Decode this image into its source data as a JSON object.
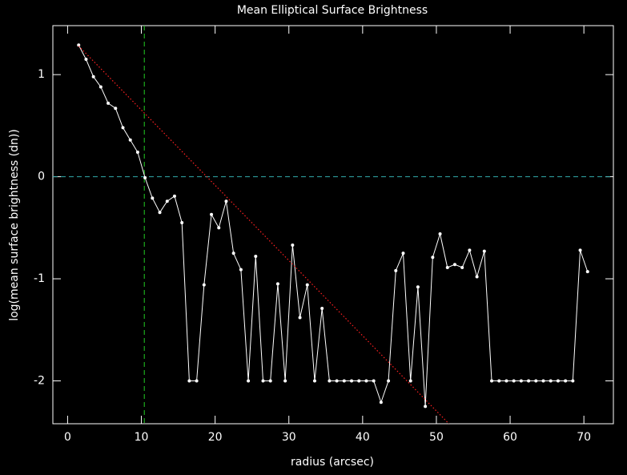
{
  "chart_data": {
    "type": "line",
    "title": "Mean Elliptical Surface Brightness",
    "x_label": "radius (arcsec)",
    "y_label": "log(mean surface brightness (dn))",
    "xlim": [
      -2,
      74
    ],
    "ylim": [
      -2.42,
      1.48
    ],
    "xticks": [
      0,
      10,
      20,
      30,
      40,
      50,
      60,
      70
    ],
    "yticks": [
      -2,
      -1,
      0,
      1
    ],
    "series": [
      {
        "color": "#ffffff",
        "x": [
          1.5,
          2.5,
          3.5,
          4.5,
          5.5,
          6.5,
          7.5,
          8.5,
          9.5,
          10.5,
          11.5,
          12.5,
          13.5,
          14.5,
          15.5,
          16.5,
          17.5,
          18.5,
          19.5,
          20.5,
          21.5,
          22.5,
          23.5,
          24.5,
          25.5,
          26.5,
          27.5,
          28.5,
          29.5,
          30.5,
          31.5,
          32.5,
          33.5,
          34.5,
          35.5,
          36.5,
          37.5,
          38.5,
          39.5,
          40.5,
          41.5,
          42.5,
          43.5,
          44.5,
          45.5,
          46.5,
          47.5,
          48.5,
          49.5,
          50.5,
          51.5,
          52.5,
          53.5,
          54.5,
          55.5,
          56.5,
          57.5,
          58.5,
          59.5,
          60.5,
          61.5,
          62.5,
          63.5,
          64.5,
          65.5,
          66.5,
          67.5,
          68.5,
          69.5,
          70.5
        ],
        "values": [
          1.29,
          1.15,
          0.98,
          0.88,
          0.72,
          0.67,
          0.48,
          0.36,
          0.24,
          -0.01,
          -0.21,
          -0.35,
          -0.24,
          -0.19,
          -0.45,
          -2,
          -2,
          -1.06,
          -0.37,
          -0.5,
          -0.24,
          -0.75,
          -0.91,
          -2,
          -0.78,
          -2,
          -2,
          -1.05,
          -2,
          -0.67,
          -1.38,
          -1.06,
          -2,
          -1.29,
          -2,
          -2,
          -2,
          -2,
          -2,
          -2,
          -2,
          -2.21,
          -2,
          -0.92,
          -0.75,
          -2,
          -1.08,
          -2.25,
          -0.79,
          -0.56,
          -0.89,
          -0.86,
          -0.89,
          -0.72,
          -0.98,
          -0.73,
          -2,
          -2,
          -2,
          -2,
          -2,
          -2,
          -2,
          -2,
          -2,
          -2,
          -2,
          -2,
          -0.72,
          -0.93
        ]
      },
      {
        "color": "#ff2020",
        "style": "dotted",
        "x": [
          1.5,
          51.7
        ],
        "values": [
          1.28,
          -2.42
        ]
      }
    ],
    "vlines": [
      {
        "x": 10.4,
        "color": "#22cc22"
      }
    ],
    "hlines": [
      {
        "y": 0,
        "color": "#33aaaa"
      }
    ]
  }
}
